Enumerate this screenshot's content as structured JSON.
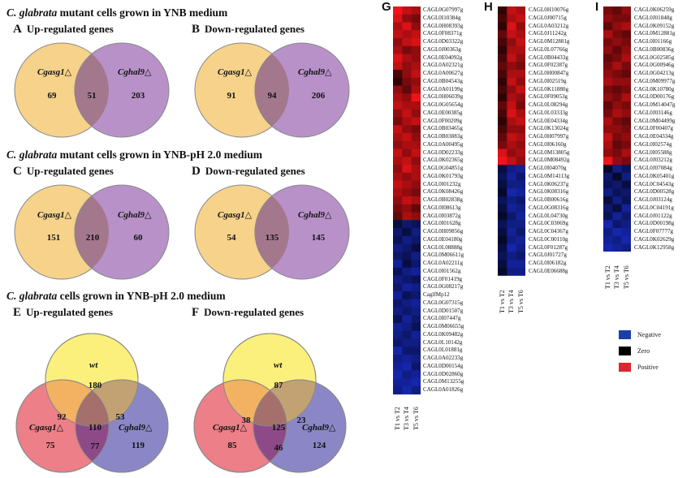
{
  "sections": [
    {
      "species": "C. glabrata",
      "rest": " mutant cells grown in YNB medium"
    },
    {
      "species": "C. glabrata",
      "rest": " mutant cells grown in YNB-pH 2.0 medium"
    },
    {
      "species": "C. glabrata",
      "rest": " cells grown in YNB-pH 2.0 medium"
    }
  ],
  "panels": {
    "A": {
      "letter": "A",
      "title": "Up-regulated genes",
      "left_label": "Cgasg1△",
      "right_label": "Cghal9△",
      "left": "69",
      "both": "51",
      "right": "203"
    },
    "B": {
      "letter": "B",
      "title": "Down-regulated genes",
      "left_label": "Cgasg1△",
      "right_label": "Cghal9△",
      "left": "91",
      "both": "94",
      "right": "206"
    },
    "C": {
      "letter": "C",
      "title": "Up-regulated genes",
      "left_label": "Cgasg1△",
      "right_label": "Cghal9△",
      "left": "151",
      "both": "210",
      "right": "60"
    },
    "D": {
      "letter": "D",
      "title": "Down-regulated genes",
      "left_label": "Cgasg1△",
      "right_label": "Cghal9△",
      "left": "54",
      "both": "135",
      "right": "145"
    },
    "E": {
      "letter": "E",
      "title": "Up-regulated genes",
      "top_label": "wt",
      "left_label": "Cgasg1△",
      "right_label": "Cghal9△",
      "top": "180",
      "left": "75",
      "right": "119",
      "top_left": "92",
      "top_right": "53",
      "center": "110",
      "left_right": "77"
    },
    "F": {
      "letter": "F",
      "title": "Down-regulated genes",
      "top_label": "wt",
      "left_label": "Cgasg1△",
      "right_label": "Cghal9△",
      "top": "87",
      "left": "85",
      "right": "124",
      "top_left": "38",
      "top_right": "23",
      "center": "125",
      "left_right": "46"
    }
  },
  "heatmaps": {
    "G": {
      "letter": "G",
      "genes": [
        "CAGL0G07997g",
        "CAGL0I10384g",
        "CAGL0H08393g",
        "CAGL0F08371g",
        "CAGL0D03322g",
        "CAGL0J00363g",
        "CAGL0E04092g",
        "CAGL0A02321g",
        "CAGL0A00627g",
        "CAGL0B04543g",
        "CAGL0A01199g",
        "CAGL0H06039g",
        "CAGL0G05654g",
        "CAGL0E00385g",
        "CAGL0F00209g",
        "CAGL0B03465g",
        "CAGL0B03883g",
        "CAGL0A00495g",
        "CAGL0D02233g",
        "CAGL0K02365g",
        "CAGL0G04851g",
        "CAGL0K01793g",
        "CAGL0I01232g",
        "CAGL0K08426g",
        "CAGL0B02838g",
        "CAGL0I08613g",
        "CAGL0I03872g",
        "CAGL0I01628g",
        "CAGL0H09856g",
        "CAGL0E04180g",
        "CAGL0L08888g",
        "CAGL0M06611g",
        "CAGL0A02211g",
        "CAGL0I01562g",
        "CAGL0F01419g",
        "CAGL0G08217g",
        "CaglfMp12",
        "CAGL0G07315g",
        "CAGL0D01507g",
        "CAGL0I07447g",
        "CAGL0M06655g",
        "CAGL0K09482g",
        "CAGL0L10142g",
        "CAGL0L01881g",
        "CAGL0A02233g",
        "CAGL0D00154g",
        "CAGL0D02860g",
        "CAGL0M13255g",
        "CAGL0A01826g"
      ],
      "values": [
        [
          1,
          0.8,
          0.7
        ],
        [
          0.9,
          0.6,
          0.5
        ],
        [
          0.7,
          0.9,
          0.6
        ],
        [
          0.8,
          0.7,
          0.8
        ],
        [
          0.6,
          0.8,
          0.9
        ],
        [
          0.7,
          0.5,
          0.6
        ],
        [
          0.9,
          0.7,
          0.6
        ],
        [
          0.8,
          0.6,
          0.7
        ],
        [
          0.3,
          0.6,
          0.8
        ],
        [
          0.2,
          0.5,
          0.6
        ],
        [
          0.6,
          0.4,
          0.7
        ],
        [
          0.7,
          0.6,
          1
        ],
        [
          0.8,
          0.7,
          0.7
        ],
        [
          0.6,
          0.8,
          0.6
        ],
        [
          0.5,
          0.7,
          0.8
        ],
        [
          0.8,
          0.6,
          0.5
        ],
        [
          0.7,
          0.8,
          0.6
        ],
        [
          0.6,
          0.7,
          0.7
        ],
        [
          0.8,
          0.6,
          0.8
        ],
        [
          0.7,
          0.8,
          0.6
        ],
        [
          0.6,
          0.9,
          0.7
        ],
        [
          0.7,
          0.6,
          0.7
        ],
        [
          0.8,
          0.7,
          0.6
        ],
        [
          0.7,
          0.6,
          0.5
        ],
        [
          0.6,
          0.8,
          0.7
        ],
        [
          0.5,
          0.6,
          0.4
        ],
        [
          0.4,
          0.7,
          0.6
        ],
        [
          -0.3,
          -0.5,
          -0.4
        ],
        [
          -0.5,
          -0.3,
          -0.6
        ],
        [
          -0.4,
          -0.6,
          -0.5
        ],
        [
          -0.6,
          -0.5,
          -0.3
        ],
        [
          -0.5,
          -0.4,
          -0.6
        ],
        [
          -0.7,
          -0.3,
          -0.5
        ],
        [
          -0.4,
          -0.6,
          -0.7
        ],
        [
          -0.6,
          -0.5,
          -0.4
        ],
        [
          -0.5,
          -0.7,
          -0.6
        ],
        [
          -0.7,
          -0.4,
          -0.5
        ],
        [
          -0.5,
          -0.6,
          -0.7
        ],
        [
          -0.6,
          -0.5,
          -0.6
        ],
        [
          -0.4,
          -0.7,
          -0.5
        ],
        [
          -0.7,
          -0.6,
          -0.4
        ],
        [
          -0.6,
          -0.5,
          -0.7
        ],
        [
          -0.5,
          -0.6,
          -0.6
        ],
        [
          -0.8,
          -0.5,
          -0.5
        ],
        [
          -0.6,
          -0.7,
          -0.6
        ],
        [
          -0.7,
          -0.8,
          -0.5
        ],
        [
          -0.8,
          -0.6,
          -0.7
        ],
        [
          -0.7,
          -0.7,
          -0.8
        ],
        [
          -0.6,
          -0.8,
          -0.6
        ]
      ],
      "columns": [
        "T1 vs T2",
        "T3 vs T4",
        "T5 vs T6"
      ]
    },
    "H": {
      "letter": "H",
      "genes": [
        "CAGL0H10076g",
        "CAGL0J00715g",
        "CAGL0A03212g",
        "CAGL0J11242g",
        "CAGL0M12881g",
        "CAGL0L07766g",
        "CAGL0B04433g",
        "CAGL0F02387g",
        "CAGL0H00847g",
        "CAGL0I02519g",
        "CAGL0K11880g",
        "CAGL0F09053g",
        "CAGL0L08294g",
        "CAGL0L03333g",
        "CAGL0E04334g",
        "CAGL0K13024g",
        "CAGL0H07997g",
        "CAGL0I06160g",
        "CAGL0M13805g",
        "CAGL0M08492g",
        "CAGL0I04070g",
        "CAGL0M14113g",
        "CAGL0K06237g",
        "CAGL0K08316g",
        "CAGL0B00616g",
        "CAGL0G08316g",
        "CAGL0L04730g",
        "CAGL0C03069g",
        "CAGL0C04367g",
        "CAGL0C00110g",
        "CAGL0F01287g",
        "CAGL0J01727g",
        "CAGL0I06182g",
        "CAGL0E06688g"
      ],
      "values": [
        [
          0.2,
          0.8,
          0.7
        ],
        [
          0.3,
          0.7,
          0.8
        ],
        [
          0.2,
          0.9,
          0.6
        ],
        [
          0.4,
          0.8,
          0.7
        ],
        [
          0.3,
          0.6,
          0.8
        ],
        [
          0.2,
          0.7,
          0.7
        ],
        [
          0.3,
          0.8,
          0.6
        ],
        [
          0.4,
          0.6,
          0.5
        ],
        [
          0.3,
          0.7,
          0.7
        ],
        [
          0.2,
          0.8,
          0.6
        ],
        [
          0.3,
          0.6,
          0.8
        ],
        [
          0.2,
          0.7,
          0.6
        ],
        [
          0.4,
          0.8,
          0.5
        ],
        [
          0.3,
          0.9,
          0.7
        ],
        [
          0.2,
          0.7,
          0.8
        ],
        [
          0.3,
          0.6,
          0.6
        ],
        [
          0.4,
          0.8,
          0.7
        ],
        [
          0.5,
          0.7,
          0.6
        ],
        [
          0.9,
          0.6,
          0.7
        ],
        [
          1,
          0.8,
          0.6
        ],
        [
          -0.3,
          -0.6,
          -0.7
        ],
        [
          -0.4,
          -0.7,
          -0.5
        ],
        [
          -0.3,
          -0.6,
          -0.6
        ],
        [
          -0.2,
          -0.8,
          -0.7
        ],
        [
          -0.4,
          -0.6,
          -0.5
        ],
        [
          -0.3,
          -0.7,
          -0.6
        ],
        [
          -0.2,
          -0.5,
          -0.7
        ],
        [
          -0.4,
          -0.6,
          -0.6
        ],
        [
          -0.3,
          -0.7,
          -0.5
        ],
        [
          -0.2,
          -0.6,
          -0.7
        ],
        [
          -0.3,
          -0.8,
          -0.6
        ],
        [
          -0.4,
          -0.6,
          -0.5
        ],
        [
          -0.3,
          -0.7,
          -0.7
        ],
        [
          -0.2,
          -0.6,
          -0.6
        ]
      ],
      "columns": [
        "T1 vs T2",
        "T3 vs T4",
        "T5 vs T6"
      ]
    },
    "I": {
      "letter": "I",
      "genes": [
        "CAGL0K06259g",
        "CAGL0J01848g",
        "CAGL0K09152g",
        "CAGL0M12881g",
        "CAGL0I01166g",
        "CAGL0B00836g",
        "CAGL0G02585g",
        "CAGL0G00946g",
        "CAGL0G04213g",
        "CAGL0M09977g",
        "CAGL0K10780g",
        "CAGL0D00176g",
        "CAGL0M14047g",
        "CAGL0J03146g",
        "CAGL0M04499g",
        "CAGL0F00407g",
        "CAGL0E04334g",
        "CAGL0I02574g",
        "CAGL0I05588g",
        "CAGL0J03212g",
        "CAGL0J07084g",
        "CAGL0K05401g",
        "CAGL0C04543g",
        "CAGL0D00528g",
        "CAGL0J03124g",
        "CAGL0C04191g",
        "CAGL0J01122g",
        "CAGL0D00198g",
        "CAGL0F07777g",
        "CAGL0K02629g",
        "CAGL0K12958g"
      ],
      "values": [
        [
          0.5,
          0.4,
          0.6
        ],
        [
          0.6,
          0.5,
          0.5
        ],
        [
          0.4,
          0.6,
          0.7
        ],
        [
          0.7,
          0.5,
          0.4
        ],
        [
          0.5,
          0.6,
          0.5
        ],
        [
          0.6,
          0.4,
          0.6
        ],
        [
          0.4,
          0.5,
          0.7
        ],
        [
          0.5,
          0.7,
          0.5
        ],
        [
          0.6,
          0.5,
          0.4
        ],
        [
          0.7,
          0.6,
          0.6
        ],
        [
          0.5,
          0.4,
          0.5
        ],
        [
          0.6,
          0.5,
          0.7
        ],
        [
          0.4,
          0.6,
          0.5
        ],
        [
          0.5,
          0.7,
          0.6
        ],
        [
          0.7,
          0.5,
          0.4
        ],
        [
          0.6,
          0.6,
          0.5
        ],
        [
          0.8,
          0.5,
          0.6
        ],
        [
          0.7,
          0.4,
          0.5
        ],
        [
          0.6,
          0.5,
          0.7
        ],
        [
          1,
          0.6,
          0.5
        ],
        [
          -0.2,
          -0.6,
          -0.4
        ],
        [
          -0.5,
          -0.2,
          -0.6
        ],
        [
          -0.4,
          -0.5,
          -0.3
        ],
        [
          -0.6,
          -0.4,
          -0.5
        ],
        [
          -0.3,
          -0.6,
          -0.4
        ],
        [
          -0.5,
          -0.3,
          -0.7
        ],
        [
          -0.4,
          -0.7,
          -0.5
        ],
        [
          -0.8,
          -0.5,
          -0.6
        ],
        [
          -0.6,
          -0.8,
          -0.7
        ],
        [
          -0.7,
          -0.6,
          -0.8
        ],
        [
          -0.8,
          -0.7,
          -0.6
        ]
      ],
      "columns": [
        "T1 vs T2",
        "T3 vs T4",
        "T5 vs T6"
      ]
    }
  },
  "legend": {
    "negative": "Negative",
    "zero": "Zero",
    "positive": "Positive"
  },
  "colors": {
    "yellow": "#f6d97a",
    "orange": "#f4c77a",
    "purple": "#b892c9",
    "overlap2": "#a07a90",
    "wt_yellow": "#fbf07b",
    "pink": "#ea7f86",
    "blue": "#8a86c4",
    "negative": "#1b3fa8",
    "positive": "#e0242e"
  }
}
